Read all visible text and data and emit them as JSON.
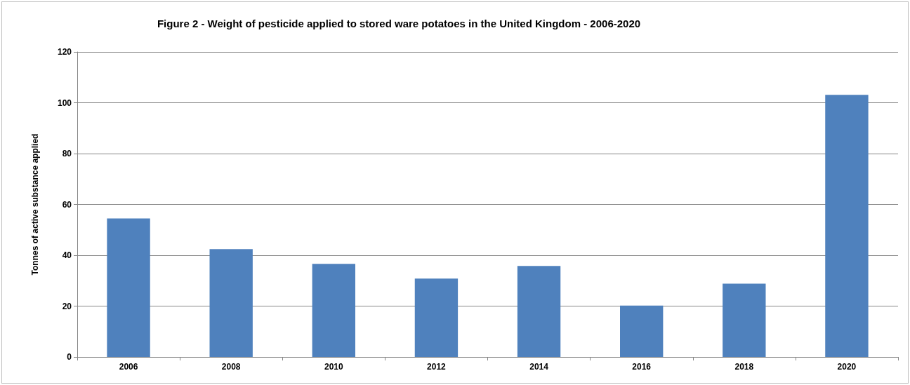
{
  "chart_data": {
    "type": "bar",
    "title": "Figure 2 - Weight of pesticide applied to stored ware potatoes in the United Kingdom - 2006-2020",
    "ylabel": "Tonnes of active substance applied",
    "categories": [
      "2006",
      "2008",
      "2010",
      "2012",
      "2014",
      "2016",
      "2018",
      "2020"
    ],
    "values": [
      54.5,
      42.4,
      36.6,
      30.8,
      35.8,
      20.2,
      28.8,
      103.1
    ],
    "color": "#4f81bd",
    "ylim": [
      0,
      120
    ],
    "yticks": [
      0,
      20,
      40,
      60,
      80,
      100,
      120
    ],
    "grid": "y"
  }
}
